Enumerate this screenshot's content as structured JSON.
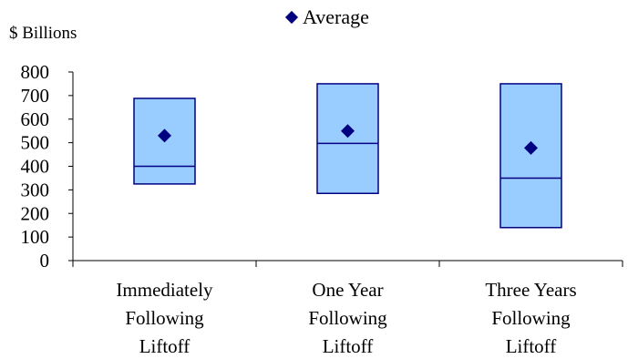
{
  "chart_data": {
    "type": "box",
    "unit_label": "$ Billions",
    "ylim": [
      0,
      800
    ],
    "yticks": [
      "0",
      "100",
      "200",
      "300",
      "400",
      "500",
      "600",
      "700",
      "800"
    ],
    "legend": {
      "label": "Average",
      "placement": "top-center",
      "marker": "diamond"
    },
    "categories": [
      [
        "Immediately",
        "Following",
        "Liftoff"
      ],
      [
        "One Year",
        "Following",
        "Liftoff"
      ],
      [
        "Three Years",
        "Following",
        "Liftoff"
      ]
    ],
    "ranges": [
      {
        "low": 325,
        "high": 688,
        "median": 400,
        "average": 530
      },
      {
        "low": 285,
        "high": 750,
        "median": 497,
        "average": 550
      },
      {
        "low": 140,
        "high": 750,
        "median": 350,
        "average": 478
      }
    ],
    "colors": {
      "box_fill": "#99ccff",
      "box_stroke": "#000080",
      "average_marker": "#000080",
      "axis": "#000000"
    }
  }
}
